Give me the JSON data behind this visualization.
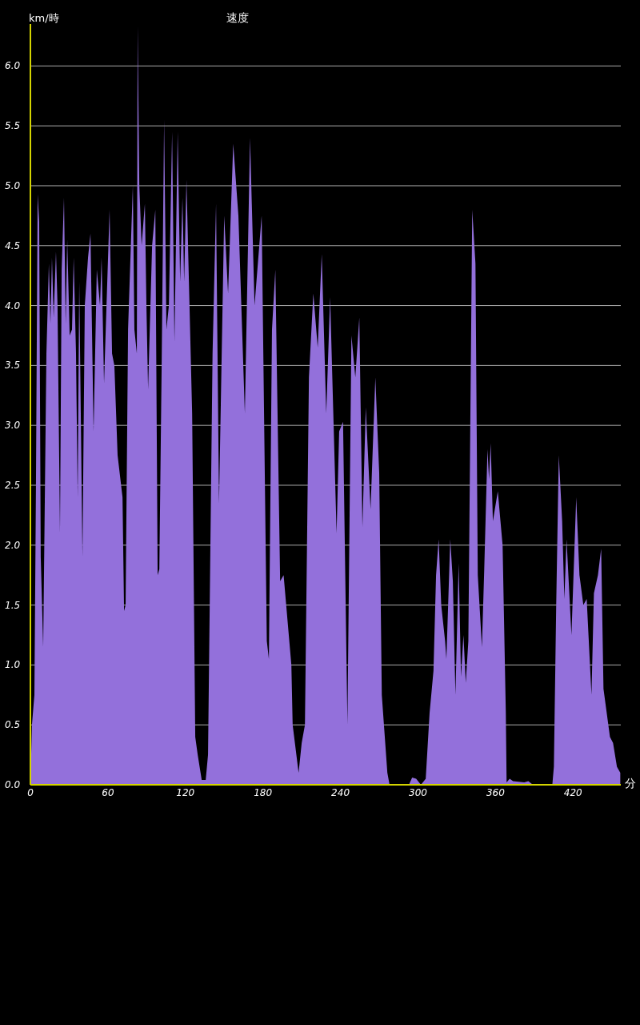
{
  "chart_data": {
    "type": "area",
    "title": "速度",
    "ylabel": "km/時",
    "xlabel": "分",
    "x": [
      0,
      1.2,
      3.1,
      4.3,
      5.6,
      6.8,
      8,
      9.9,
      12.4,
      14.3,
      15.5,
      16.7,
      18,
      19.8,
      21,
      22.9,
      24.2,
      26,
      27.3,
      28.5,
      30.4,
      32.2,
      33.5,
      35.3,
      36.6,
      37.8,
      40.3,
      42.1,
      44.6,
      46.5,
      48.9,
      51.4,
      53.9,
      55.1,
      57,
      59.5,
      61.3,
      63.2,
      65,
      67.5,
      71.3,
      72.5,
      73.7,
      75.6,
      79.3,
      80.5,
      82.4,
      83,
      84.3,
      86.1,
      88.6,
      89.8,
      91.1,
      94.2,
      96.7,
      98.5,
      99.8,
      101.6,
      103.5,
      105.3,
      107.2,
      109.7,
      111.5,
      114,
      115.9,
      117.7,
      119,
      120.8,
      122.7,
      125.2,
      127.6,
      129.5,
      132.6,
      135.7,
      137.5,
      141,
      143.7,
      146,
      150,
      153,
      157,
      161,
      166,
      170,
      173.5,
      179,
      183,
      184.6,
      187,
      189.6,
      193.3,
      196,
      202,
      203,
      207.6,
      210,
      212.5,
      215.6,
      219,
      222.4,
      225.5,
      229,
      232,
      237,
      239,
      242,
      245.4,
      248.5,
      251.5,
      254.6,
      257,
      259.6,
      263.3,
      267,
      270,
      272,
      276.3,
      278,
      293,
      295.5,
      298.6,
      302.3,
      306,
      309,
      312,
      314,
      316,
      318,
      321,
      322,
      325,
      327,
      329,
      331.5,
      333.3,
      335.2,
      337,
      339,
      342,
      344.5,
      346.3,
      349.5,
      351.3,
      353.8,
      355,
      356.3,
      358,
      361.8,
      365.5,
      368,
      368.6,
      371,
      373.6,
      382.3,
      385.4,
      389,
      404,
      405.2,
      407,
      409,
      411.6,
      413.3,
      415,
      418.8,
      422.5,
      425,
      428,
      430.6,
      434.3,
      436.2,
      439.3,
      441.8,
      443.6,
      448.6,
      451,
      454,
      456.6
    ],
    "series": [
      {
        "color": "#9370db",
        "values": [
          0,
          0.5,
          0.75,
          2.5,
          4.93,
          4.7,
          1.9,
          1.15,
          3.6,
          4.35,
          3.85,
          4.4,
          3.9,
          4.45,
          4.0,
          2.1,
          4.3,
          4.9,
          3.85,
          4.55,
          3.75,
          3.8,
          4.4,
          3.6,
          2.4,
          4.2,
          1.9,
          4.0,
          4.4,
          4.6,
          2.95,
          4.3,
          4.0,
          4.4,
          3.35,
          4.2,
          4.8,
          3.6,
          3.5,
          2.75,
          2.4,
          1.45,
          1.5,
          3.8,
          5.0,
          3.8,
          3.6,
          6.33,
          5.0,
          4.5,
          4.85,
          4.0,
          3.3,
          4.5,
          4.8,
          1.75,
          1.8,
          3.5,
          5.55,
          3.8,
          4.0,
          5.45,
          3.7,
          5.45,
          4.2,
          4.9,
          4.2,
          5.05,
          4.2,
          3.1,
          0.4,
          0.25,
          0.04,
          0.04,
          0.25,
          3.6,
          4.85,
          2.35,
          4.75,
          4.1,
          5.35,
          4.75,
          3.1,
          5.4,
          4.0,
          4.75,
          1.2,
          1.05,
          3.8,
          4.3,
          1.7,
          1.75,
          1.0,
          0.5,
          0.1,
          0.35,
          0.5,
          3.4,
          4.1,
          3.65,
          4.43,
          3.1,
          4.07,
          2.1,
          2.95,
          3.03,
          0.5,
          3.75,
          3.4,
          3.9,
          2.15,
          3.15,
          2.3,
          3.4,
          2.6,
          0.75,
          0.1,
          0,
          0,
          0.06,
          0.05,
          0,
          0.05,
          0.6,
          0.95,
          1.75,
          2.05,
          1.5,
          1.2,
          1.05,
          2.05,
          1.7,
          0.75,
          1.85,
          0.9,
          1.25,
          0.85,
          1.2,
          4.8,
          4.35,
          1.75,
          1.15,
          1.8,
          2.8,
          2.55,
          2.85,
          2.2,
          2.45,
          2.0,
          0.6,
          0.02,
          0.05,
          0.03,
          0.02,
          0.03,
          0,
          0,
          0.15,
          1.5,
          2.75,
          2.2,
          1.55,
          2.05,
          1.25,
          2.4,
          1.75,
          1.5,
          1.55,
          0.75,
          1.6,
          1.75,
          1.97,
          0.8,
          0.4,
          0.35,
          0.15,
          0.1
        ]
      }
    ],
    "xlim": [
      0,
      457
    ],
    "ylim": [
      0,
      6.35
    ],
    "xticks": [
      0,
      60,
      120,
      180,
      240,
      300,
      360,
      420
    ],
    "yticks": [
      {
        "value": 0,
        "label": "0.0"
      },
      {
        "value": 0.5,
        "label": "0.5"
      },
      {
        "value": 1,
        "label": "1.0"
      },
      {
        "value": 1.5,
        "label": "1.5"
      },
      {
        "value": 2,
        "label": "2.0"
      },
      {
        "value": 2.5,
        "label": "2.5"
      },
      {
        "value": 3,
        "label": "3.0"
      },
      {
        "value": 3.5,
        "label": "3.5"
      },
      {
        "value": 4,
        "label": "4.0"
      },
      {
        "value": 4.5,
        "label": "4.5"
      },
      {
        "value": 5,
        "label": "5.0"
      },
      {
        "value": 5.5,
        "label": "5.5"
      },
      {
        "value": 6,
        "label": "6.0"
      }
    ],
    "grid": "y"
  }
}
